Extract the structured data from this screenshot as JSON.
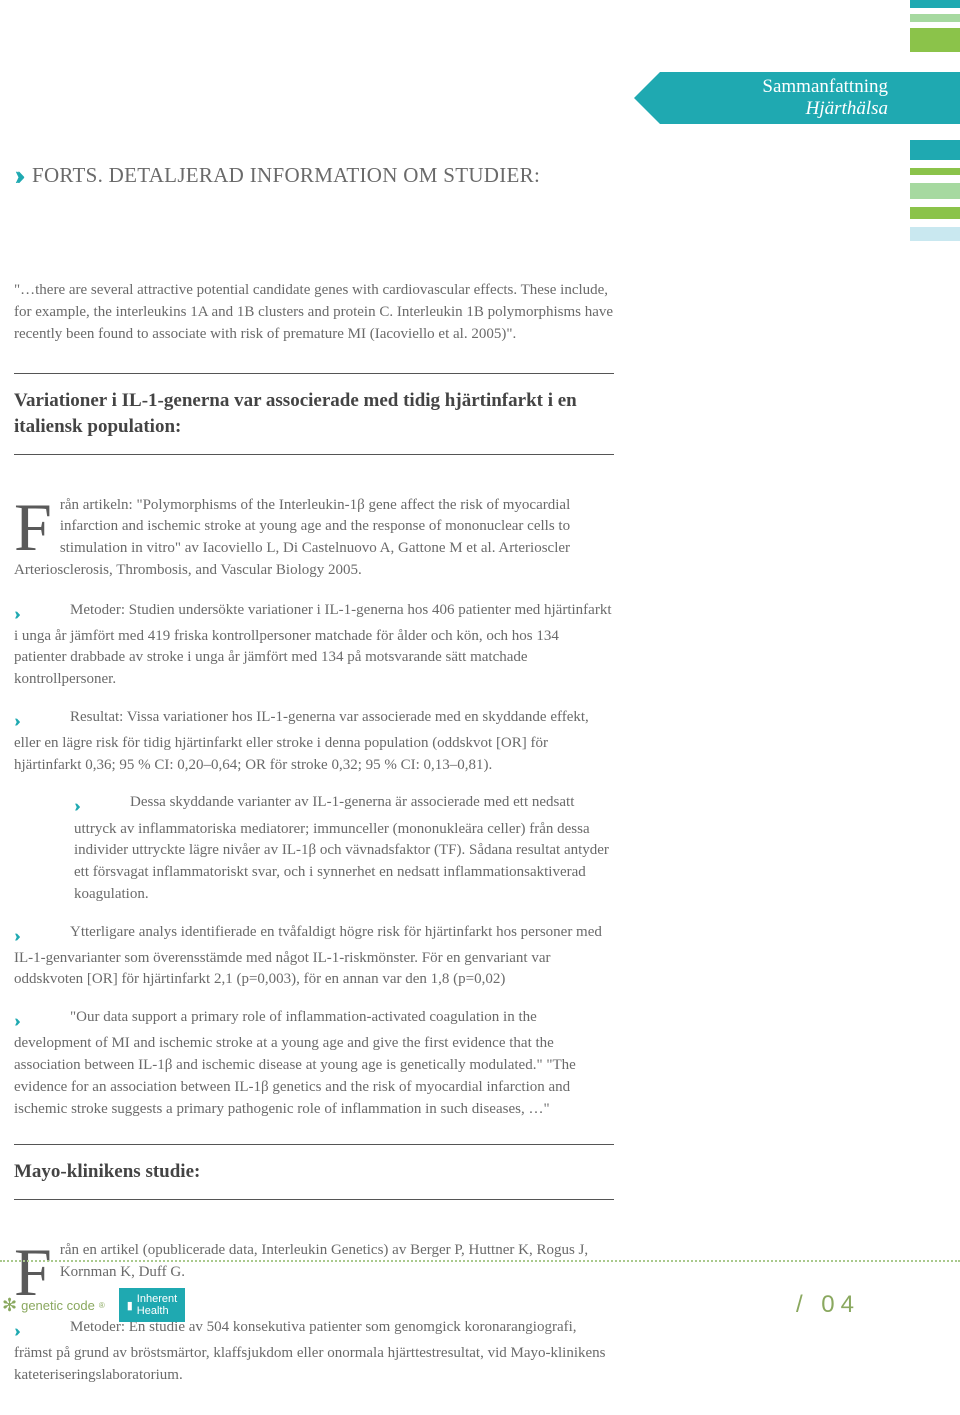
{
  "tag": {
    "line1": "Sammanfattning",
    "line2": "Hjärthälsa"
  },
  "bars_top": [
    {
      "color": "#1fa9b1",
      "h": 8
    },
    {
      "color": "#a6d9a0",
      "h": 8
    },
    {
      "color": "#8bc34a",
      "h": 24
    }
  ],
  "bars_mid": [
    {
      "color": "#1fa9b1",
      "h": 20
    },
    {
      "color": "#8bc34a",
      "h": 7
    },
    {
      "color": "#a6d9a0",
      "h": 16
    },
    {
      "color": "#8bc34a",
      "h": 12
    },
    {
      "color": "#c9e8f0",
      "h": 14
    }
  ],
  "section_title": "FORTS. DETALJERAD INFORMATION OM STUDIER:",
  "intro": "\"…there are several attractive potential candidate genes with cardiovascular effects. These include, for example, the interleukins 1A and 1B clusters and protein C. Interleukin 1B poly­morphisms have recently been found to associate with risk of premature MI (Iacoviello et al. 2005)\".",
  "study1": {
    "title": "Variationer i IL-1-generna var associerade med tidig hjärtinfarkt i en italiensk population:",
    "article": "rån artikeln: \"Polymorphisms of the Interleukin-1β gene affect the risk of myocardial infarction and ischemic stroke at young age and the response of mononuclear cells to stimulation in vitro\" av Iacoviello L, Di Castelnuovo A, Gattone M et al. Arterioscler Arteriosclerosis, Thrombosis, and Vascular Biology 2005.",
    "p1": "Metoder: Studien undersökte variationer i IL-1-generna hos 406 patienter med hjärtinfarkt i unga år jämfört med 419 friska kontrollpersoner matchade för ålder och kön, och hos 134 patienter drabbade av stroke i unga år jämfört med 134 på motsvarande sätt matchade kontrollpersoner.",
    "p2": "Resultat: Vissa variationer hos IL-1-generna var associerade med en skyddande effekt, eller en lägre risk för tidig hjärtinfarkt eller stroke i denna population (oddskvot [OR] för hjärtinfarkt 0,36; 95 % CI: 0,20–0,64; OR för stroke 0,32; 95 % CI: 0,13–0,81).",
    "p3": "Dessa skyddande varianter av IL-1-generna är associerade med ett ned­satt uttryck av inflammatoriska mediatorer; immunceller (mononukleära celler) från dessa individer uttryckte lägre nivåer av IL-1β och vävnadsfaktor (TF). Sådana resultat antyder ett försvagat inflammatoriskt svar, och i synnerhet en nedsatt inflammationsaktiverad koagu­lation.",
    "p4": "Ytterligare analys identifierade en tvåfaldigt högre risk för hjärtinfarkt hos per­soner med IL-1-genvarianter som överensstämde med något IL-1-riskmönster. För en gen­variant var oddskvoten [OR] för hjärtinfarkt 2,1 (p=0,003), för en annan var den 1,8 (p=0,02)",
    "p5": "\"Our data support a primary role of inflammation-activated coagulation in the development of MI and ischemic stroke at a young age and give the first evidence that the association between IL-1β and ischemic disease at young age is genetically modulated.\" \"The evidence for an association between IL-1β   genetics and the risk of myocardial infarction and ischemic stroke suggests a primary pathogenic role of inflammation in such diseases, …\""
  },
  "study2": {
    "title": "Mayo-klinikens studie:",
    "article": "rån en artikel (opublicerade data, Interleukin Genetics) av Berger P, Huttner K, Rogus J, Kornman K, Duff G.",
    "p1": "Metoder: En studie av 504 konsekutiva patienter som genomgick koronarangio­grafi, främst på grund av bröstsmärtor, klaffsjukdom eller onormala hjärttestresultat, vid Mayo-klinikens kateteriseringslaboratorium."
  },
  "footer": {
    "logo1": "genetic code",
    "logo2a": "Inherent",
    "logo2b": "Health",
    "page": "/  04"
  }
}
